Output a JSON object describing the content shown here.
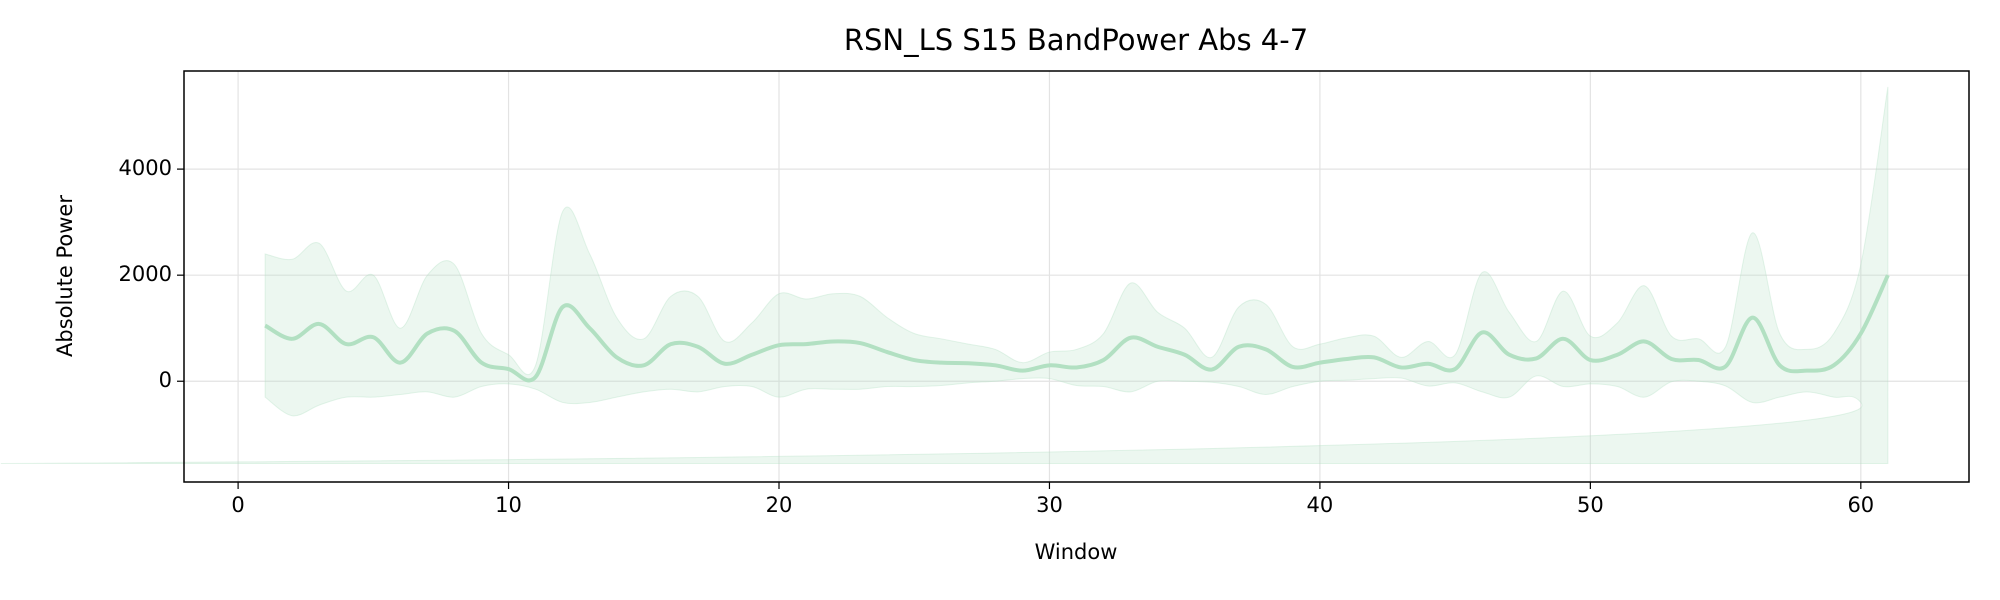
{
  "chart_data": {
    "type": "band-line",
    "title": "RSN_LS S15 BandPower Abs 4-7",
    "x_label": "Window",
    "y_label": "Absolute Power",
    "x": [
      1,
      2,
      3,
      4,
      5,
      6,
      7,
      8,
      9,
      10,
      11,
      12,
      13,
      14,
      15,
      16,
      17,
      18,
      19,
      20,
      21,
      22,
      23,
      24,
      25,
      26,
      27,
      28,
      29,
      30,
      31,
      32,
      33,
      34,
      35,
      36,
      37,
      38,
      39,
      40,
      41,
      42,
      43,
      44,
      45,
      46,
      47,
      48,
      49,
      50,
      51,
      52,
      53,
      54,
      55,
      56,
      57,
      58,
      59,
      60,
      61
    ],
    "values": [
      1050,
      800,
      1080,
      700,
      830,
      350,
      900,
      950,
      350,
      230,
      80,
      1400,
      1000,
      450,
      300,
      700,
      650,
      330,
      500,
      680,
      700,
      750,
      720,
      550,
      400,
      350,
      340,
      300,
      200,
      300,
      260,
      400,
      820,
      650,
      500,
      220,
      650,
      600,
      270,
      350,
      420,
      450,
      260,
      330,
      230,
      920,
      500,
      430,
      800,
      400,
      500,
      750,
      420,
      400,
      280,
      1200,
      300,
      200,
      300,
      900,
      2000
    ],
    "upper": [
      2400,
      2300,
      2600,
      1700,
      2000,
      1000,
      2000,
      2200,
      900,
      500,
      300,
      3200,
      2400,
      1200,
      800,
      1600,
      1600,
      750,
      1100,
      1650,
      1550,
      1650,
      1600,
      1200,
      900,
      800,
      700,
      600,
      350,
      550,
      600,
      900,
      1850,
      1300,
      1000,
      450,
      1400,
      1450,
      650,
      700,
      820,
      850,
      450,
      750,
      500,
      2050,
      1300,
      750,
      1700,
      850,
      1100,
      1800,
      850,
      800,
      650,
      2800,
      900,
      600,
      900,
      2200,
      5550
    ],
    "lower": [
      -300,
      -650,
      -450,
      -300,
      -300,
      -250,
      -200,
      -300,
      -100,
      -50,
      -150,
      -400,
      -400,
      -300,
      -200,
      -150,
      -200,
      -100,
      -100,
      -300,
      -150,
      -150,
      -150,
      -100,
      -100,
      -80,
      -30,
      0,
      50,
      50,
      -80,
      -100,
      -200,
      0,
      0,
      -20,
      -100,
      -250,
      -100,
      0,
      20,
      50,
      60,
      -90,
      -30,
      -200,
      -300,
      100,
      -100,
      -50,
      -100,
      -300,
      -10,
      0,
      -90,
      -400,
      -300,
      -200,
      -300,
      -400,
      -1550
    ],
    "color": "#b2e0c2",
    "xlim": [
      -2,
      64
    ],
    "ylim": [
      -1900,
      5850
    ],
    "xticks": [
      0,
      10,
      20,
      30,
      40,
      50,
      60
    ],
    "yticks": [
      0,
      2000,
      4000
    ],
    "grid": true
  }
}
